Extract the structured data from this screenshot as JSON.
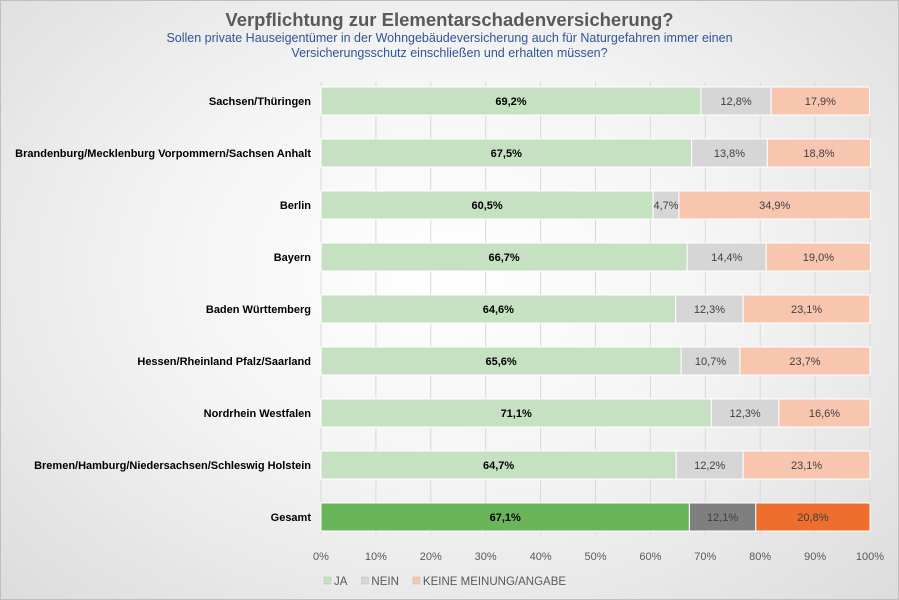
{
  "chart_data": {
    "type": "bar",
    "orientation": "horizontal",
    "stacked": "percent",
    "title": "Verpflichtung zur Elementarschadenversicherung?",
    "subtitle_lines": [
      "Sollen private Hauseigentümer in der Wohngebäudeversicherung  auch für Naturgefahren  immer einen",
      "Versicherungsschutz  einschließen  und  erhalten  müssen?"
    ],
    "categories": [
      "Sachsen/Thüringen",
      "Brandenburg/Mecklenburg Vorpommern/Sachsen Anhalt",
      "Berlin",
      "Bayern",
      "Baden Württemberg",
      "Hessen/Rheinland Pfalz/Saarland",
      "Nordrhein Westfalen",
      "Bremen/Hamburg/Niedersachsen/Schleswig Holstein",
      "Gesamt"
    ],
    "series": [
      {
        "name": "JA",
        "color": "#c6e0c2",
        "values": [
          69.2,
          67.5,
          60.5,
          66.7,
          64.6,
          65.6,
          71.1,
          64.7,
          67.1
        ],
        "labels": [
          "69,2%",
          "67,5%",
          "60,5%",
          "66,7%",
          "64,6%",
          "65,6%",
          "71,1%",
          "64,7%",
          "67,1%"
        ]
      },
      {
        "name": "NEIN",
        "color": "#d6d6d6",
        "values": [
          12.8,
          13.8,
          4.7,
          14.4,
          12.3,
          10.7,
          12.3,
          12.2,
          12.1
        ],
        "labels": [
          "12,8%",
          "13,8%",
          "4,7%",
          "14,4%",
          "12,3%",
          "10,7%",
          "12,3%",
          "12,2%",
          "12,1%"
        ]
      },
      {
        "name": "KEINE MEINUNG/ANGABE",
        "color": "#f8c5ae",
        "values": [
          17.9,
          18.8,
          34.9,
          19.0,
          23.1,
          23.7,
          16.6,
          23.1,
          20.8
        ],
        "labels": [
          "17,9%",
          "18,8%",
          "34,9%",
          "19,0%",
          "23,1%",
          "23,7%",
          "16,6%",
          "23,1%",
          "20,8%"
        ]
      }
    ],
    "highlight": {
      "category": "Gesamt",
      "colors": [
        "#6ab55a",
        "#7f7f7f",
        "#ed6e2d"
      ]
    },
    "x_ticks": [
      "0%",
      "10%",
      "20%",
      "30%",
      "40%",
      "50%",
      "60%",
      "70%",
      "80%",
      "90%",
      "100%"
    ],
    "xlim": [
      0,
      100
    ],
    "grid": true,
    "legend": "bottom-left"
  }
}
